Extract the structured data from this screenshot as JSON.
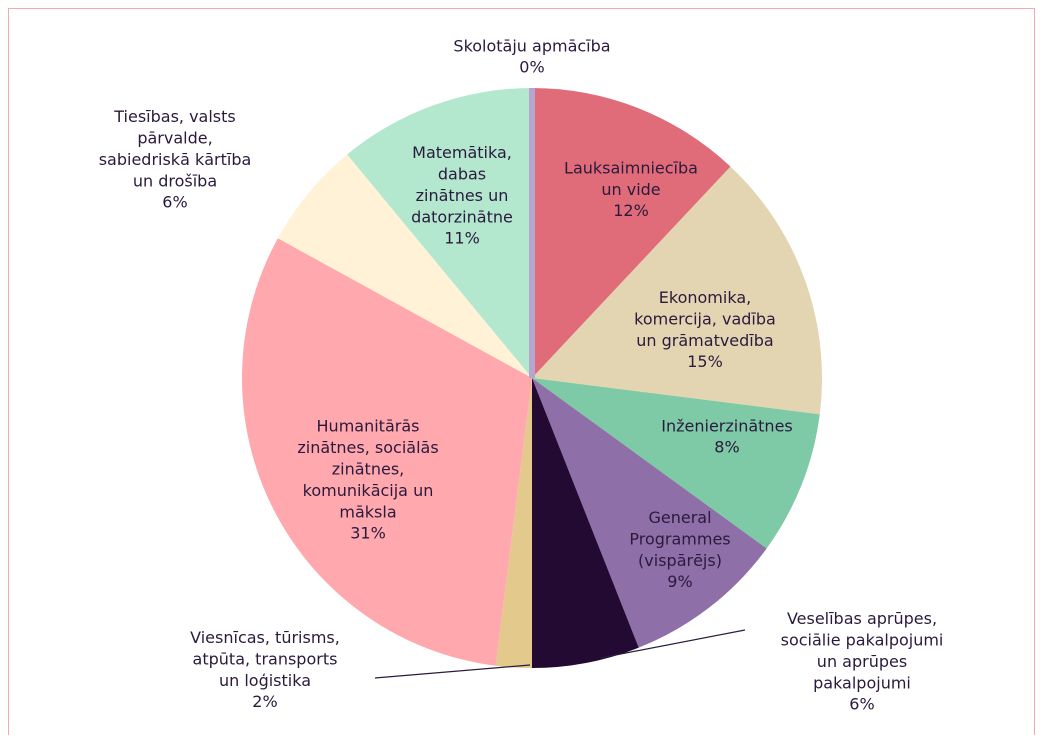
{
  "chart_data": {
    "type": "pie",
    "categories": [
      "Lauksaimniecība un vide",
      "Ekonomika, komercija, vadība un grāmatvedība",
      "Inženierzinātnes",
      "General Programmes (vispārējs)",
      "Veselības aprūpes, sociālie pakalpojumi un aprūpes pakalpojumi",
      "Viesnīcas, tūrisms, atpūta, transports un loģistika",
      "Humanitārās zinātnes, sociālās zinātnes, komunikācija un māksla",
      "Tiesības, valsts pārvalde, sabiedriskā kārtība un drošība",
      "Matemātika, dabas zinātnes un datorzinātne",
      "Skolotāju apmācība"
    ],
    "values": [
      12,
      15,
      8,
      9,
      6,
      2,
      31,
      6,
      11,
      0
    ],
    "value_labels": [
      "12%",
      "15%",
      "8%",
      "9%",
      "6%",
      "2%",
      "31%",
      "6%",
      "11%",
      "0%"
    ],
    "colors": [
      "#e06c7a",
      "#e3d5b1",
      "#7ec9a6",
      "#8e6fa8",
      "#220a33",
      "#e3c98b",
      "#ffa8ae",
      "#fff2d6",
      "#b3e8cf",
      "#b4a6cf"
    ]
  }
}
